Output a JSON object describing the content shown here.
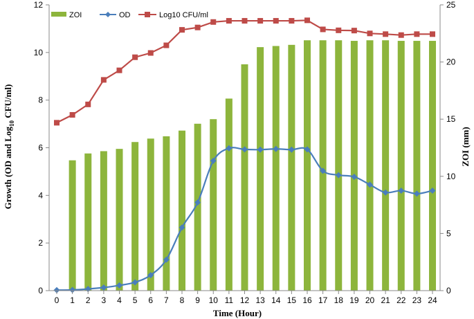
{
  "chart_data": {
    "type": "bar+line",
    "xlabel": "Time (Hour)",
    "ylabel_left": {
      "prefix": "Growth (OD and Log",
      "subscript": "10",
      "suffix": " CFU/ml)"
    },
    "ylabel_right": "ZOI (mm)",
    "x": [
      0,
      1,
      2,
      3,
      4,
      5,
      6,
      7,
      8,
      9,
      10,
      11,
      12,
      13,
      14,
      15,
      16,
      17,
      18,
      19,
      20,
      21,
      22,
      23,
      24
    ],
    "ylim_left": [
      0,
      12
    ],
    "ylim_right": [
      0,
      25
    ],
    "yticks_left": [
      0,
      2,
      4,
      6,
      8,
      10,
      12
    ],
    "yticks_right": [
      0,
      5,
      10,
      15,
      20,
      25
    ],
    "series": [
      {
        "name": "ZOI",
        "type": "bar",
        "axis": "right",
        "color": "#8DB53C",
        "values": [
          null,
          11.4,
          12.0,
          12.2,
          12.4,
          13.0,
          13.3,
          13.5,
          14.0,
          14.6,
          15.0,
          16.8,
          19.8,
          21.3,
          21.4,
          21.5,
          21.9,
          21.9,
          21.9,
          21.85,
          21.9,
          21.9,
          21.85,
          21.85,
          21.85
        ]
      },
      {
        "name": "OD",
        "type": "line",
        "axis": "left",
        "color": "#4A7EBB",
        "marker": "diamond",
        "values": [
          0.02,
          0.03,
          0.07,
          0.13,
          0.22,
          0.35,
          0.65,
          1.3,
          2.65,
          3.7,
          5.45,
          5.98,
          5.93,
          5.92,
          5.95,
          5.92,
          5.93,
          5.03,
          4.85,
          4.78,
          4.45,
          4.12,
          4.2,
          4.07,
          4.2
        ]
      },
      {
        "name": "Log10 CFU/ml",
        "type": "line",
        "axis": "left",
        "color": "#BE4B48",
        "marker": "square",
        "values": [
          7.05,
          7.38,
          7.82,
          8.85,
          9.25,
          9.8,
          9.98,
          10.3,
          10.95,
          11.05,
          11.28,
          11.33,
          11.33,
          11.33,
          11.33,
          11.33,
          11.35,
          10.97,
          10.93,
          10.92,
          10.8,
          10.77,
          10.73,
          10.77,
          10.77
        ]
      }
    ]
  }
}
